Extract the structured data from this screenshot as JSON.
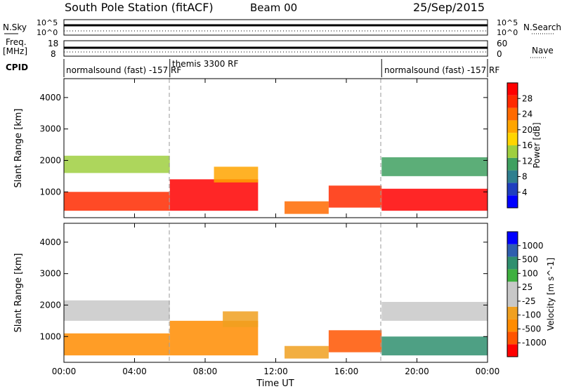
{
  "header": {
    "station": "South Pole Station (fitACF)",
    "beam": "Beam 00",
    "date": "25/Sep/2015"
  },
  "top_panels": {
    "nsky": {
      "label": "N.Sky",
      "ticks": [
        "10^5",
        "10^0"
      ],
      "right_label": "N.Search",
      "right_ticks": [
        "10^5",
        "10^0"
      ]
    },
    "freq": {
      "label_line1": "Freq.",
      "label_line2": "[MHz]",
      "ticks": [
        "18",
        "8"
      ],
      "right_label": "Nave",
      "right_ticks": [
        "60",
        "0"
      ]
    },
    "cpid": {
      "label": "CPID",
      "segments": [
        {
          "text": "normalsound (fast) -157 RF",
          "start_hour": 0,
          "end_hour": 6
        },
        {
          "text": "themis 3300 RF",
          "start_hour": 6,
          "end_hour": 18
        },
        {
          "text": "normalsound (fast) -157 RF",
          "start_hour": 18,
          "end_hour": 24
        }
      ]
    }
  },
  "colors": {
    "power_scale": [
      "#0000ff",
      "#1f3fbf",
      "#2f7f8f",
      "#3fa060",
      "#9fcf3f",
      "#ffd500",
      "#ffa500",
      "#ff6a00",
      "#ff2a00",
      "#ff0000"
    ],
    "velocity_scale": [
      "#ff0000",
      "#ff5500",
      "#ff8c00",
      "#f0a020",
      "#c8c8c8",
      "#c8c8c8",
      "#3fb040",
      "#2f8f6f",
      "#2f5faf",
      "#0000ff"
    ]
  },
  "chart_data": [
    {
      "type": "heatmap",
      "panel": "power",
      "ylabel": "Slant Range [km]",
      "y_ticks": [
        "1000",
        "2000",
        "3000",
        "4000"
      ],
      "ylim": [
        180,
        4600
      ],
      "xlim": [
        0,
        24
      ],
      "colorbar_label": "Power [dB]",
      "colorbar_ticks": [
        "4",
        "8",
        "12",
        "16",
        "20",
        "24",
        "28"
      ],
      "regions": [
        {
          "t0": 0.0,
          "t1": 6.0,
          "r0": 400,
          "r1": 1000,
          "level": 8
        },
        {
          "t0": 0.0,
          "t1": 6.0,
          "r0": 1600,
          "r1": 2150,
          "level": 4
        },
        {
          "t0": 6.0,
          "t1": 11.0,
          "r0": 400,
          "r1": 1400,
          "level": 9
        },
        {
          "t0": 8.5,
          "t1": 11.0,
          "r0": 1300,
          "r1": 1800,
          "level": 6
        },
        {
          "t0": 12.5,
          "t1": 15.0,
          "r0": 300,
          "r1": 700,
          "level": 7
        },
        {
          "t0": 15.0,
          "t1": 18.0,
          "r0": 500,
          "r1": 1200,
          "level": 8
        },
        {
          "t0": 18.0,
          "t1": 24.0,
          "r0": 400,
          "r1": 1100,
          "level": 9
        },
        {
          "t0": 18.0,
          "t1": 24.0,
          "r0": 1500,
          "r1": 2100,
          "level": 3
        }
      ]
    },
    {
      "type": "heatmap",
      "panel": "velocity",
      "ylabel": "Slant Range [km]",
      "y_ticks": [
        "1000",
        "2000",
        "3000",
        "4000"
      ],
      "ylim": [
        180,
        4600
      ],
      "xlim": [
        0,
        24
      ],
      "x_ticks": [
        "00:00",
        "04:00",
        "08:00",
        "12:00",
        "16:00",
        "20:00",
        "00:00"
      ],
      "xlabel": "Time UT",
      "colorbar_label": "Velocity [m s^-1]",
      "colorbar_ticks": [
        "-1000",
        "-500",
        "-100",
        "-25",
        "25",
        "100",
        "500",
        "1000"
      ],
      "regions": [
        {
          "t0": 0.0,
          "t1": 6.0,
          "r0": 400,
          "r1": 1100,
          "level": 2
        },
        {
          "t0": 0.0,
          "t1": 6.0,
          "r0": 1500,
          "r1": 2150,
          "level": 5
        },
        {
          "t0": 6.0,
          "t1": 11.0,
          "r0": 400,
          "r1": 1500,
          "level": 2
        },
        {
          "t0": 9.0,
          "t1": 11.0,
          "r0": 1300,
          "r1": 1800,
          "level": 3
        },
        {
          "t0": 12.5,
          "t1": 15.0,
          "r0": 300,
          "r1": 700,
          "level": 3
        },
        {
          "t0": 15.0,
          "t1": 18.0,
          "r0": 500,
          "r1": 1200,
          "level": 1
        },
        {
          "t0": 18.0,
          "t1": 24.0,
          "r0": 400,
          "r1": 1000,
          "level": 7
        },
        {
          "t0": 18.0,
          "t1": 24.0,
          "r0": 1500,
          "r1": 2100,
          "level": 5
        }
      ]
    }
  ]
}
